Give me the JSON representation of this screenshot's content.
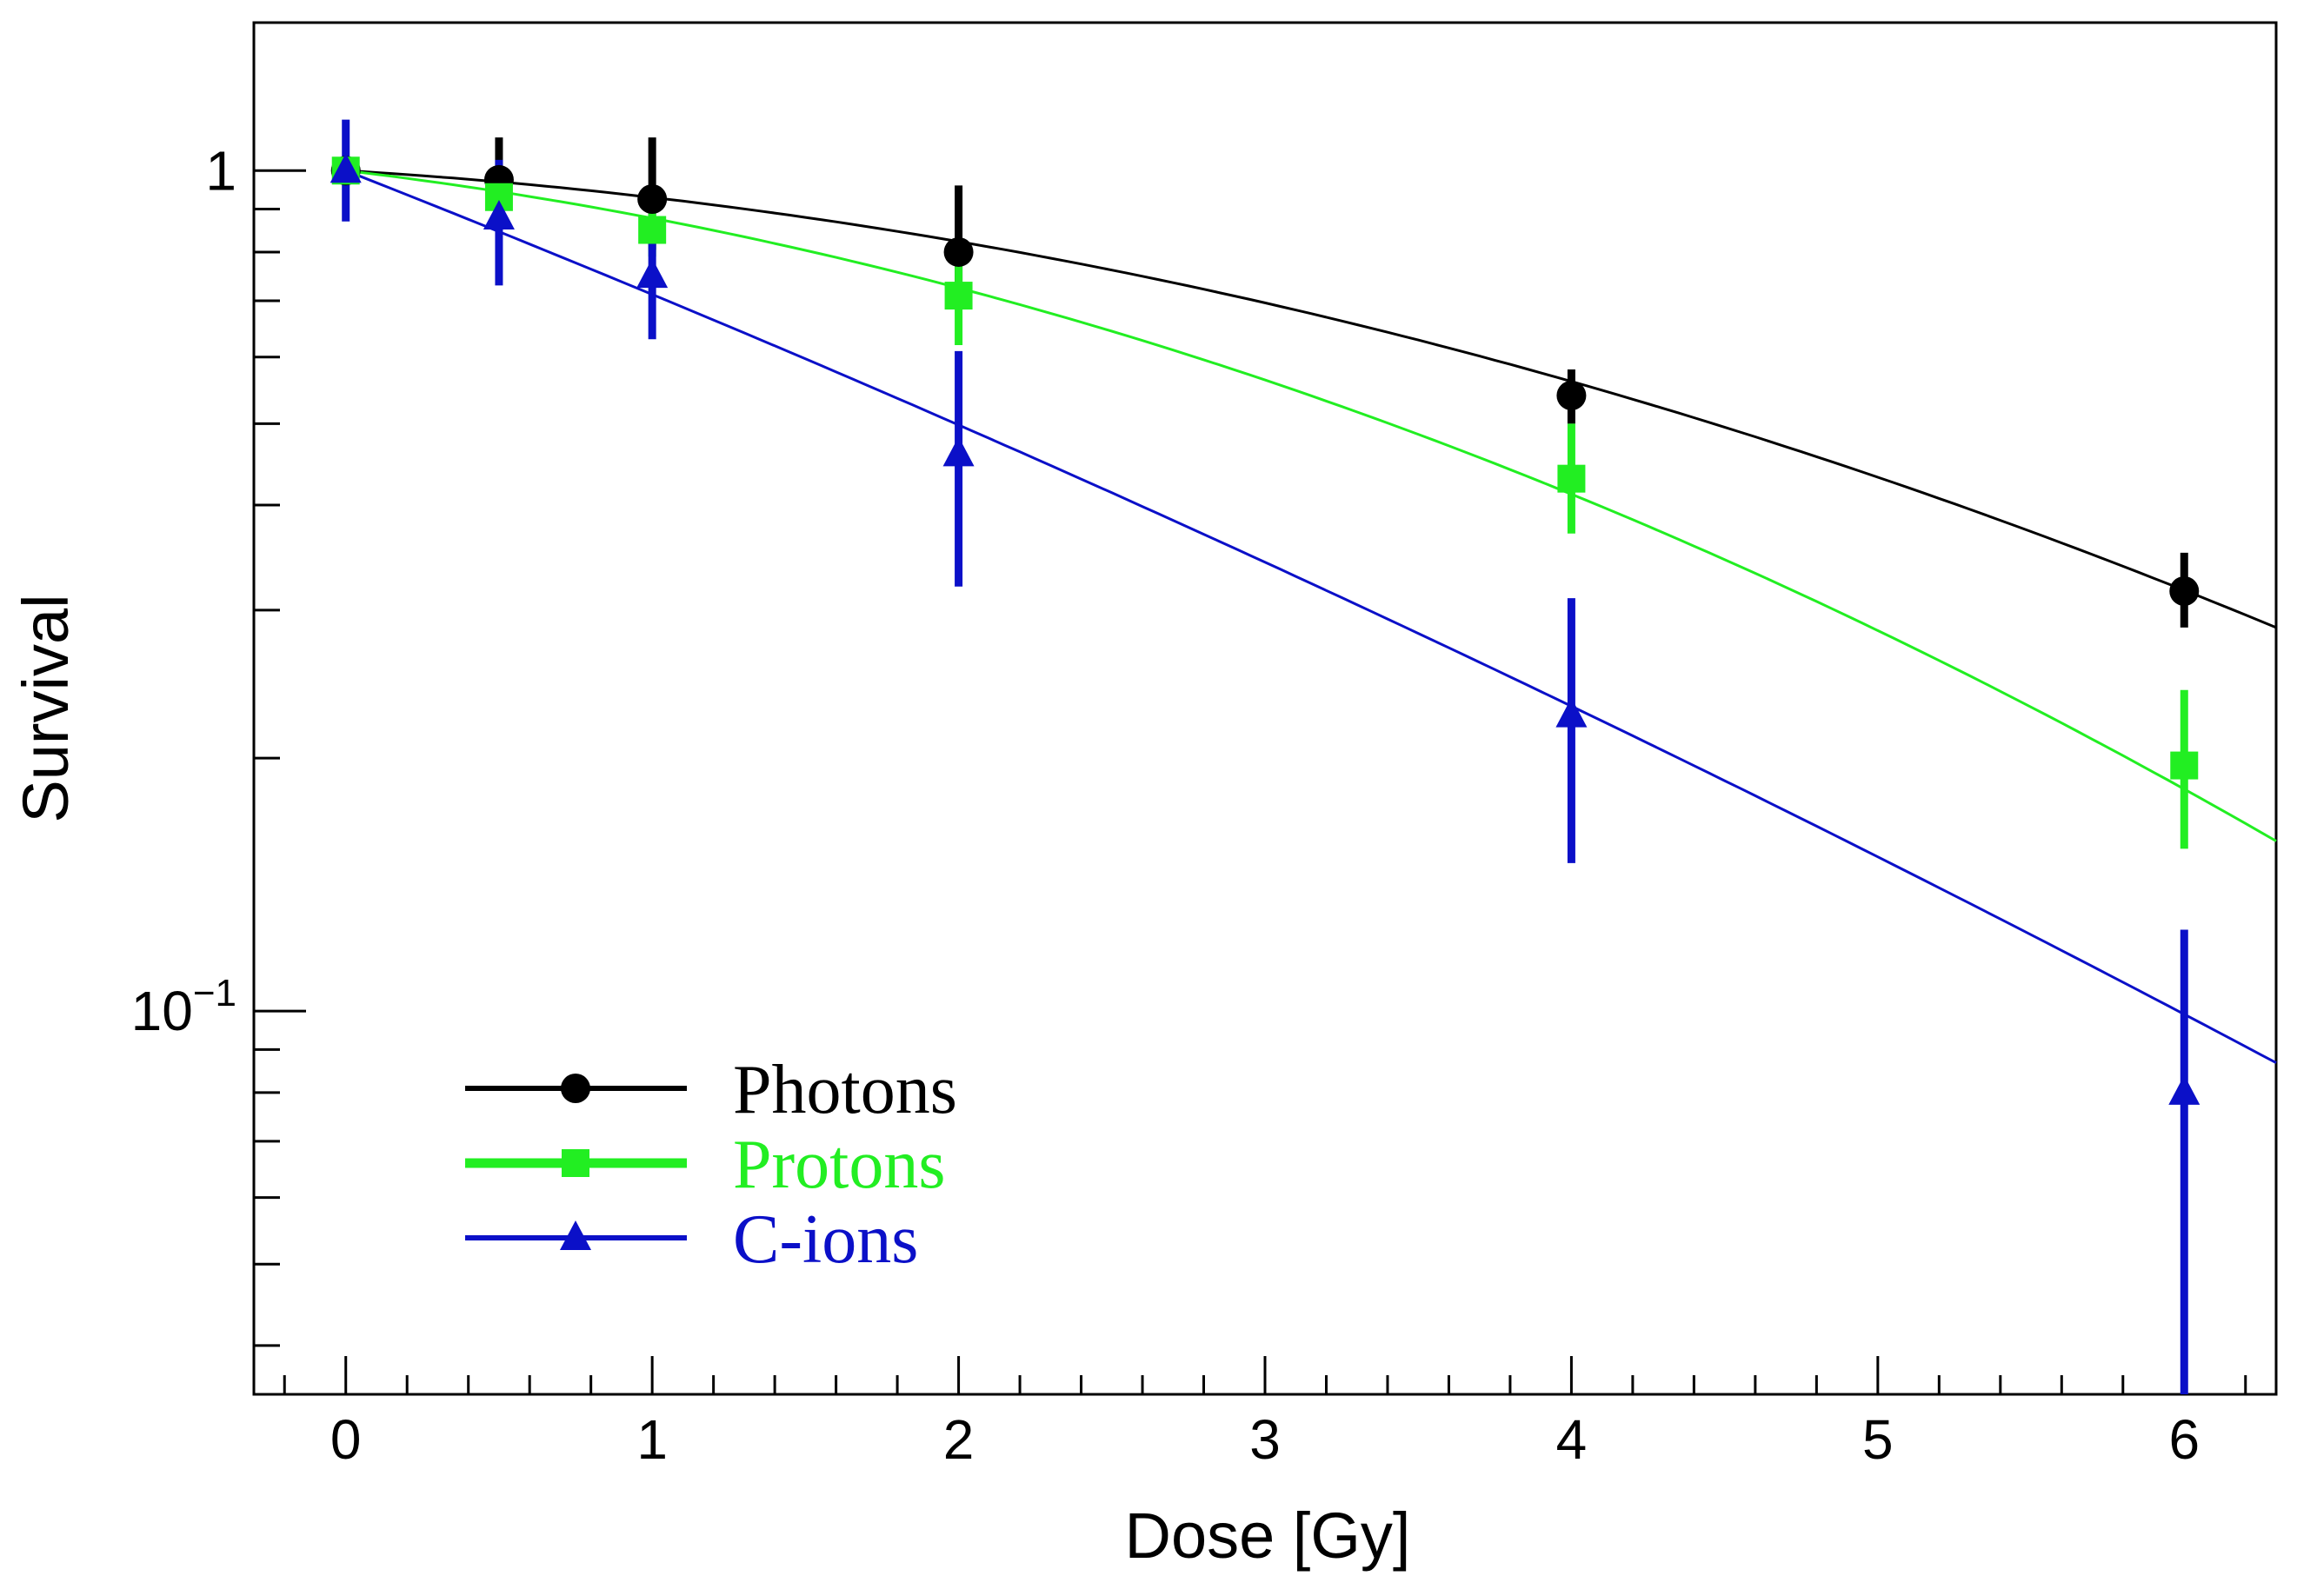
{
  "chart_data": {
    "type": "scatter",
    "title": "",
    "xlabel": "Dose [Gy]",
    "ylabel": "Survival",
    "xlim": [
      -0.3,
      6.3
    ],
    "ylim": [
      0.035,
      1.5
    ],
    "yscale": "log",
    "grid": false,
    "xticks": [
      0,
      1,
      2,
      3,
      4,
      5,
      6
    ],
    "xtick_labels": [
      "0",
      "1",
      "2",
      "3",
      "4",
      "5",
      "6"
    ],
    "yticks_major": [
      {
        "value": 1,
        "label": "1",
        "sup": ""
      },
      {
        "value": 0.1,
        "label": "10",
        "sup": "−1"
      }
    ],
    "legend_position": "bottom-left",
    "series": [
      {
        "name": "Photons",
        "color": "#000000",
        "marker": "circle",
        "x": [
          0,
          0.5,
          1,
          2,
          4,
          6
        ],
        "y": [
          1.0,
          0.975,
          0.925,
          0.8,
          0.54,
          0.316
        ],
        "err_low": [
          0.0,
          0.11,
          0.12,
          0.1,
          0.04,
          0.03
        ],
        "err_high": [
          0.0,
          0.12,
          0.17,
          0.16,
          0.04,
          0.035
        ],
        "fit": {
          "alpha": 0.05,
          "beta": 0.0236
        }
      },
      {
        "name": "Protons",
        "color": "#22ee22",
        "marker": "square",
        "x": [
          0,
          0.5,
          1,
          2,
          4,
          6
        ],
        "y": [
          1.0,
          0.93,
          0.85,
          0.71,
          0.43,
          0.196
        ],
        "err_low": [
          0.0,
          0.05,
          0.06,
          0.09,
          0.06,
          0.04
        ],
        "err_high": [
          0.0,
          0.05,
          0.06,
          0.1,
          0.07,
          0.045
        ],
        "fit": {
          "alpha": 0.1,
          "beta": 0.0304
        }
      },
      {
        "name": "C-ions",
        "color": "#0b10c8",
        "marker": "triangle",
        "x": [
          0,
          0.5,
          1,
          2,
          4,
          6
        ],
        "y": [
          1.0,
          0.88,
          0.75,
          0.46,
          0.225,
          0.08
        ],
        "err_low": [
          0.13,
          0.15,
          0.12,
          0.14,
          0.075,
          0.048
        ],
        "err_high": [
          0.15,
          0.15,
          0.1,
          0.15,
          0.085,
          0.045
        ],
        "fit": {
          "alpha": 0.33,
          "beta": 0.0092
        }
      }
    ]
  }
}
